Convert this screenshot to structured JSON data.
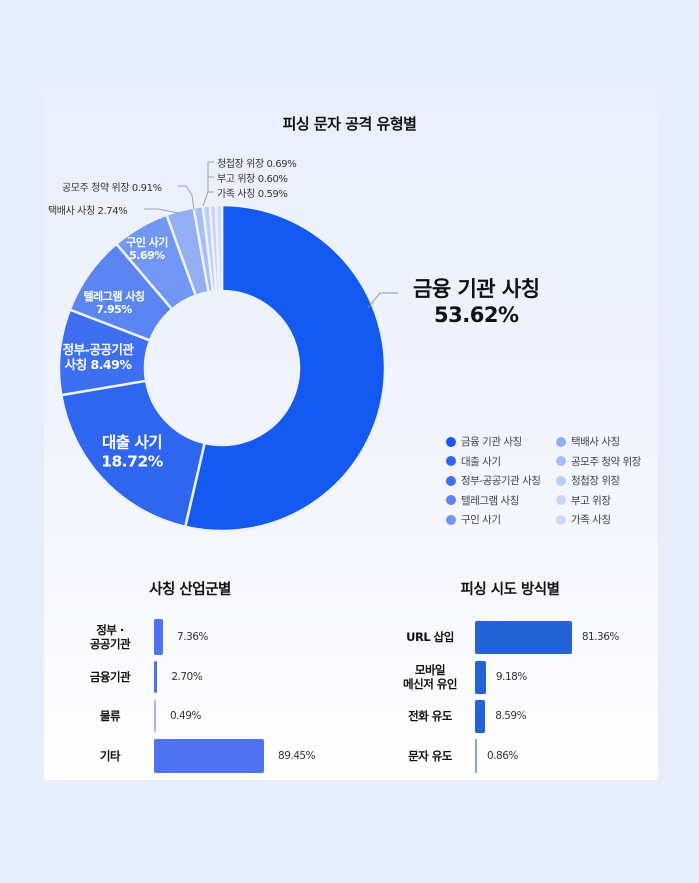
{
  "chart_data": [
    {
      "type": "pie",
      "subtype": "donut",
      "title": "피싱 문자 공격 유형별",
      "categories": [
        "금융 기관 사칭",
        "대출 사기",
        "정부·공공기관 사칭",
        "텔레그램 사칭",
        "구인 사기",
        "택배사 사칭",
        "공모주 청약 위장",
        "청첩장 위장",
        "부고 위장",
        "가족 사칭"
      ],
      "values": [
        53.62,
        18.72,
        8.49,
        7.95,
        5.69,
        2.74,
        0.91,
        0.69,
        0.6,
        0.59
      ],
      "colors": [
        "#1459f0",
        "#2f66f0",
        "#3d6ff0",
        "#5b86f2",
        "#7196f3",
        "#93aef5",
        "#a7bdf6",
        "#bccdf8",
        "#c6d5f9",
        "#cfdbfa"
      ],
      "legend_position": "bottom-right",
      "segment_labels": [
        {
          "name": "금융 기관 사칭",
          "value": "53.62%"
        },
        {
          "name": "대출 사기",
          "value": "18.72%"
        },
        {
          "name": "정부-공공기관",
          "name2": "사칭 8.49%"
        },
        {
          "name": "텔레그램 사칭",
          "value": "7.95%"
        },
        {
          "name": "구인 사기",
          "value": "5.69%"
        }
      ],
      "callouts": [
        "택배사 사칭 2.74%",
        "공모주 청약 위장 0.91%",
        "청첩장 위장 0.69%",
        "부고 위장 0.60%",
        "가족 사칭 0.59%"
      ]
    },
    {
      "type": "bar",
      "orientation": "horizontal",
      "title": "사칭 산업군별",
      "categories": [
        "정부·공공기관",
        "금융기관",
        "물류",
        "기타"
      ],
      "values": [
        7.36,
        2.7,
        0.49,
        89.45
      ],
      "value_labels": [
        "7.36%",
        "2.70%",
        "0.49%",
        "89.45%"
      ],
      "color": "#4f73f0"
    },
    {
      "type": "bar",
      "orientation": "horizontal",
      "title": "피싱 시도 방식별",
      "categories": [
        "URL 삽입",
        "모바일 메신저 유인",
        "전화 유도",
        "문자 유도"
      ],
      "values": [
        81.36,
        9.18,
        8.59,
        0.86
      ],
      "value_labels": [
        "81.36%",
        "9.18%",
        "8.59%",
        "0.86%"
      ],
      "color": "#2463d6"
    }
  ],
  "donut": {
    "title": "피싱 문자 공격 유형별",
    "big_label": {
      "name": "금융 기관 사칭",
      "value": "53.62%"
    },
    "labels": {
      "loan": {
        "name": "대출 사기",
        "value": "18.72%"
      },
      "gov": {
        "line1": "정부-공공기관",
        "line2": "사칭 8.49%"
      },
      "telegram": {
        "name": "텔레그램 사칭",
        "value": "7.95%"
      },
      "job": {
        "name": "구인 사기",
        "value": "5.69%"
      }
    },
    "callouts": {
      "delivery": "택배사 사칭 2.74%",
      "ipo": "공모주 청약 위장 0.91%",
      "wedding": "청첩장 위장 0.69%",
      "funeral": "부고 위장 0.60%",
      "family": "가족 사칭 0.59%"
    }
  },
  "legend": [
    {
      "label": "금융 기관 사칭",
      "color": "#1459f0"
    },
    {
      "label": "대출 사기",
      "color": "#2f66f0"
    },
    {
      "label": "정부-공공기관 사칭",
      "color": "#3d6ff0"
    },
    {
      "label": "텔레그램 사칭",
      "color": "#5b86f2"
    },
    {
      "label": "구인 사기",
      "color": "#7196f3"
    },
    {
      "label": "택배사 사칭",
      "color": "#93aef5"
    },
    {
      "label": "공모주 청약 위장",
      "color": "#a7bdf6"
    },
    {
      "label": "청첩장 위장",
      "color": "#bccdf8"
    },
    {
      "label": "부고 위장",
      "color": "#c6d5f9"
    },
    {
      "label": "가족 사칭",
      "color": "#cfdbfa"
    }
  ],
  "industry": {
    "title": "사칭 산업군별",
    "rows": [
      {
        "label1": "정부 ·",
        "label2": "공공기관",
        "value": "7.36%"
      },
      {
        "label1": "금융기관",
        "label2": "",
        "value": "2.70%"
      },
      {
        "label1": "물류",
        "label2": "",
        "value": "0.49%"
      },
      {
        "label1": "기타",
        "label2": "",
        "value": "89.45%"
      }
    ]
  },
  "method": {
    "title": "피싱 시도 방식별",
    "rows": [
      {
        "label1": "URL 삽입",
        "label2": "",
        "value": "81.36%"
      },
      {
        "label1": "모바일",
        "label2": "메신저 유인",
        "value": "9.18%"
      },
      {
        "label1": "전화 유도",
        "label2": "",
        "value": "8.59%"
      },
      {
        "label1": "문자 유도",
        "label2": "",
        "value": "0.86%"
      }
    ]
  }
}
